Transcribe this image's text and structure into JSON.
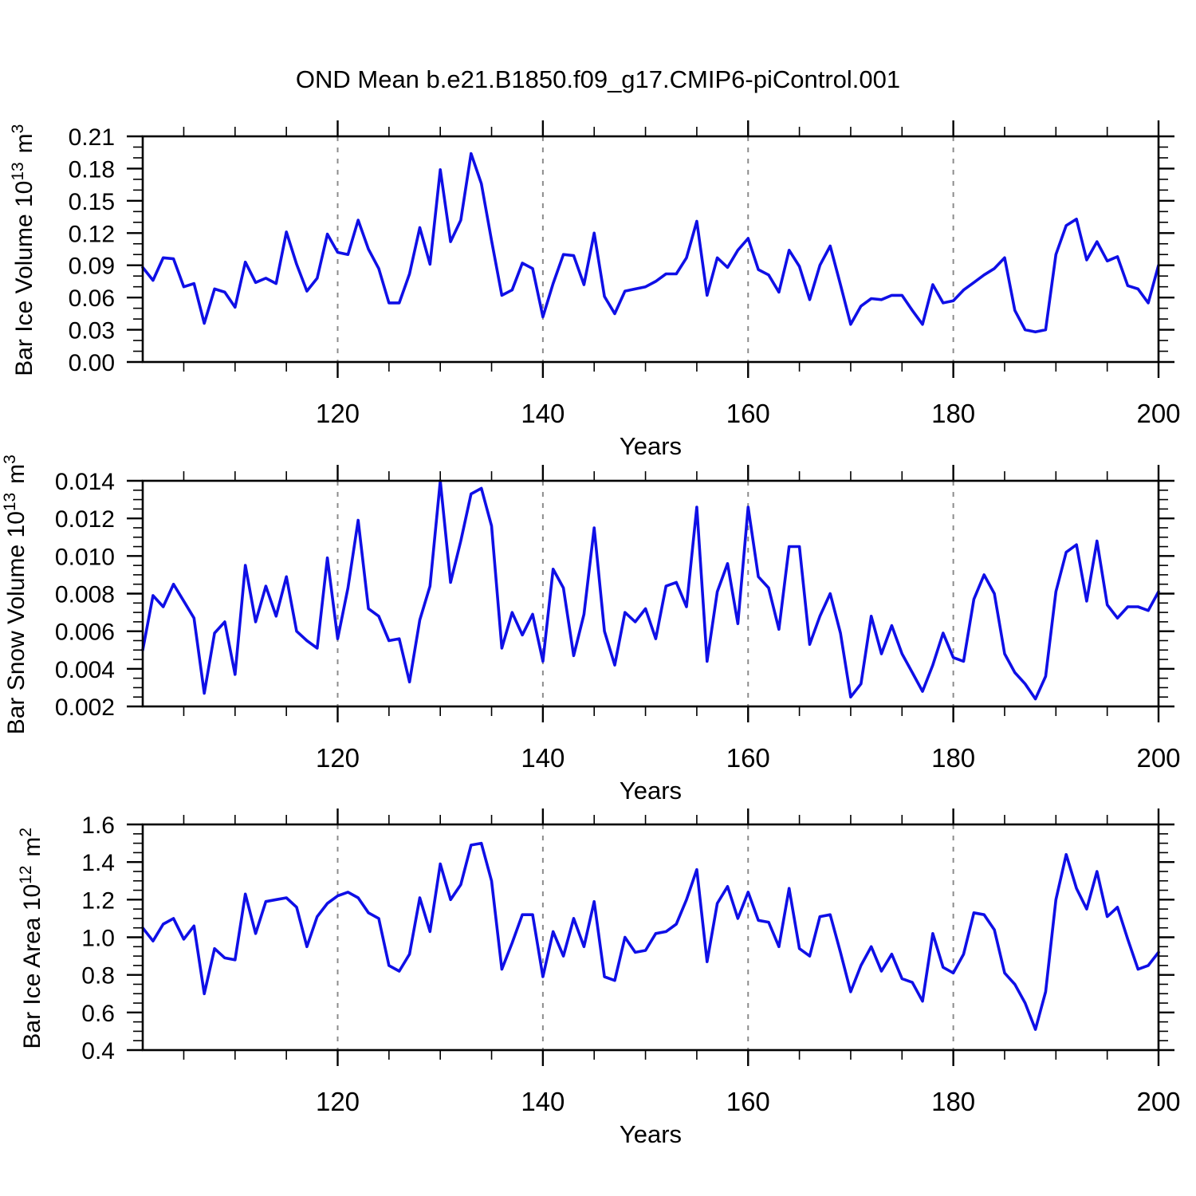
{
  "title": "OND Mean b.e21.B1850.f09_g17.CMIP6-piControl.001",
  "colors": {
    "line": "#0f0fe6",
    "grid": "#8c8c8c",
    "frame": "#000000",
    "text": "#000000",
    "background": "#ffffff"
  },
  "x_axis": {
    "label": "Years",
    "start_year": 101,
    "end_year": 200,
    "major_ticks": [
      120,
      140,
      160,
      180,
      200
    ],
    "minor_step": 5,
    "gridlines": [
      120,
      140,
      160,
      180
    ]
  },
  "chart_data": [
    {
      "type": "line",
      "name": "bar-ice-volume",
      "ylabel": "Bar Ice Volume 10^13 m^3",
      "ylabel_parts": [
        {
          "text": "Bar Ice Volume 10"
        },
        {
          "text": "13",
          "sup": true
        },
        {
          "text": " m"
        },
        {
          "text": "3",
          "sup": true
        }
      ],
      "xlabel": "Years",
      "ylim": [
        0.0,
        0.21
      ],
      "ytick_labels": [
        "0.00",
        "0.03",
        "0.06",
        "0.09",
        "0.12",
        "0.15",
        "0.18",
        "0.21"
      ],
      "ytick_minor_step": 0.01,
      "x_start": 101,
      "values": [
        0.088,
        0.076,
        0.097,
        0.096,
        0.07,
        0.073,
        0.036,
        0.068,
        0.065,
        0.051,
        0.093,
        0.074,
        0.078,
        0.073,
        0.121,
        0.091,
        0.066,
        0.078,
        0.119,
        0.102,
        0.1,
        0.132,
        0.105,
        0.087,
        0.055,
        0.055,
        0.082,
        0.125,
        0.091,
        0.179,
        0.112,
        0.132,
        0.194,
        0.166,
        0.113,
        0.062,
        0.067,
        0.092,
        0.087,
        0.042,
        0.073,
        0.1,
        0.099,
        0.072,
        0.12,
        0.061,
        0.045,
        0.066,
        0.068,
        0.07,
        0.075,
        0.082,
        0.082,
        0.097,
        0.131,
        0.062,
        0.097,
        0.088,
        0.104,
        0.115,
        0.086,
        0.081,
        0.065,
        0.104,
        0.089,
        0.058,
        0.09,
        0.108,
        0.072,
        0.035,
        0.052,
        0.059,
        0.058,
        0.062,
        0.062,
        0.048,
        0.035,
        0.072,
        0.055,
        0.057,
        0.067,
        0.074,
        0.081,
        0.087,
        0.097,
        0.048,
        0.03,
        0.028,
        0.03,
        0.1,
        0.127,
        0.133,
        0.095,
        0.112,
        0.094,
        0.098,
        0.071,
        0.068,
        0.055,
        0.09
      ]
    },
    {
      "type": "line",
      "name": "bar-snow-volume",
      "ylabel": "Bar Snow Volume 10^13 m^3",
      "ylabel_parts": [
        {
          "text": "Bar Snow Volume 10"
        },
        {
          "text": "13",
          "sup": true
        },
        {
          "text": " m"
        },
        {
          "text": "3",
          "sup": true
        }
      ],
      "xlabel": "Years",
      "ylim": [
        0.002,
        0.014
      ],
      "ytick_labels": [
        "0.002",
        "0.004",
        "0.006",
        "0.008",
        "0.010",
        "0.012",
        "0.014"
      ],
      "ytick_minor_step": 0.0005,
      "x_start": 101,
      "values": [
        0.005,
        0.0079,
        0.0073,
        0.0085,
        0.0076,
        0.0067,
        0.0027,
        0.0059,
        0.0065,
        0.0037,
        0.0095,
        0.0065,
        0.0084,
        0.0068,
        0.0089,
        0.006,
        0.0055,
        0.0051,
        0.0099,
        0.0056,
        0.0083,
        0.0119,
        0.0072,
        0.0068,
        0.0055,
        0.0056,
        0.0033,
        0.0066,
        0.0084,
        0.014,
        0.0086,
        0.0108,
        0.0133,
        0.0136,
        0.0116,
        0.0051,
        0.007,
        0.0058,
        0.0069,
        0.0044,
        0.0093,
        0.0083,
        0.0047,
        0.0069,
        0.0115,
        0.006,
        0.0042,
        0.007,
        0.0065,
        0.0072,
        0.0056,
        0.0084,
        0.0086,
        0.0073,
        0.0126,
        0.0044,
        0.0081,
        0.0096,
        0.0064,
        0.0126,
        0.0089,
        0.0083,
        0.0061,
        0.0105,
        0.0105,
        0.0053,
        0.0068,
        0.008,
        0.0059,
        0.0025,
        0.0032,
        0.0068,
        0.0048,
        0.0063,
        0.0048,
        0.0038,
        0.0028,
        0.0042,
        0.0059,
        0.0046,
        0.0044,
        0.0077,
        0.009,
        0.008,
        0.0048,
        0.0038,
        0.0032,
        0.0024,
        0.0036,
        0.0081,
        0.0102,
        0.0106,
        0.0076,
        0.0108,
        0.0074,
        0.0067,
        0.0073,
        0.0073,
        0.0071,
        0.0081
      ]
    },
    {
      "type": "line",
      "name": "bar-ice-area",
      "ylabel": "Bar Ice Area 10^12 m^2",
      "ylabel_parts": [
        {
          "text": "Bar Ice Area 10"
        },
        {
          "text": "12",
          "sup": true
        },
        {
          "text": " m"
        },
        {
          "text": "2",
          "sup": true
        }
      ],
      "xlabel": "Years",
      "ylim": [
        0.4,
        1.6
      ],
      "ytick_labels": [
        "0.4",
        "0.6",
        "0.8",
        "1.0",
        "1.2",
        "1.4",
        "1.6"
      ],
      "ytick_minor_step": 0.05,
      "x_start": 101,
      "values": [
        1.05,
        0.98,
        1.07,
        1.1,
        0.99,
        1.06,
        0.7,
        0.94,
        0.89,
        0.88,
        1.23,
        1.02,
        1.19,
        1.2,
        1.21,
        1.16,
        0.95,
        1.11,
        1.18,
        1.22,
        1.24,
        1.21,
        1.13,
        1.1,
        0.85,
        0.82,
        0.91,
        1.21,
        1.03,
        1.39,
        1.2,
        1.28,
        1.49,
        1.5,
        1.3,
        0.83,
        0.97,
        1.12,
        1.12,
        0.79,
        1.03,
        0.9,
        1.1,
        0.95,
        1.19,
        0.79,
        0.77,
        1.0,
        0.92,
        0.93,
        1.02,
        1.03,
        1.07,
        1.2,
        1.36,
        0.87,
        1.18,
        1.27,
        1.1,
        1.24,
        1.09,
        1.08,
        0.95,
        1.26,
        0.94,
        0.9,
        1.11,
        1.12,
        0.92,
        0.71,
        0.85,
        0.95,
        0.82,
        0.91,
        0.78,
        0.76,
        0.66,
        1.02,
        0.84,
        0.81,
        0.91,
        1.13,
        1.12,
        1.04,
        0.81,
        0.75,
        0.65,
        0.51,
        0.71,
        1.2,
        1.44,
        1.26,
        1.15,
        1.35,
        1.11,
        1.16,
        0.99,
        0.83,
        0.85,
        0.92
      ]
    }
  ]
}
